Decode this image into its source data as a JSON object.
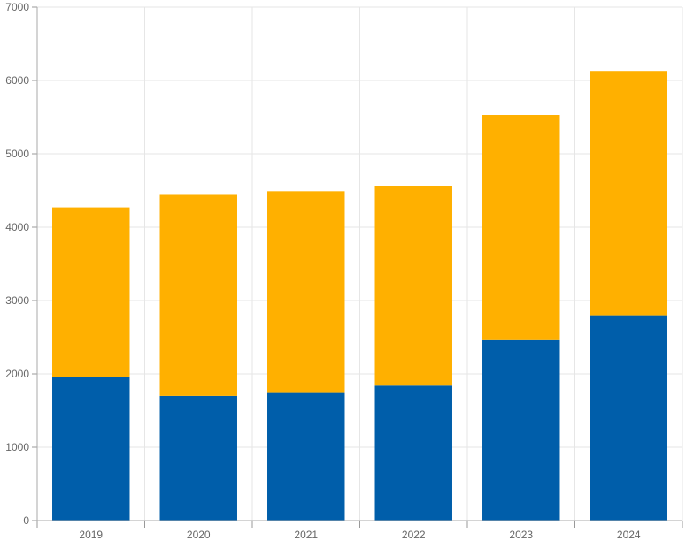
{
  "chart_data": {
    "type": "bar",
    "stacked": true,
    "categories": [
      "2019",
      "2020",
      "2021",
      "2022",
      "2023",
      "2024"
    ],
    "series": [
      {
        "color": "#005eaa",
        "values": [
          1960,
          1700,
          1740,
          1840,
          2460,
          2800
        ]
      },
      {
        "color": "#ffb000",
        "values": [
          2310,
          2740,
          2750,
          2720,
          3070,
          3330
        ]
      }
    ],
    "title": "",
    "xlabel": "",
    "ylabel": "",
    "ylim": [
      0,
      7000
    ],
    "yticks": [
      "0",
      "1000",
      "2000",
      "3000",
      "4000",
      "5000",
      "6000",
      "7000"
    ],
    "grid": true,
    "legend": "none"
  }
}
